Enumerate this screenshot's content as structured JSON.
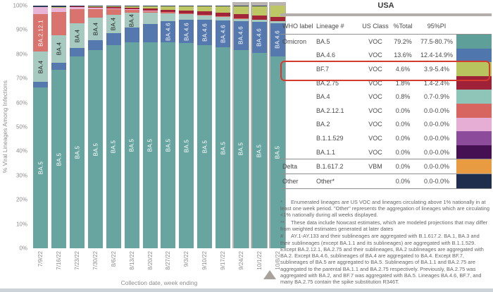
{
  "chart": {
    "y_axis_label": "% Viral Lineages Among Infections",
    "x_axis_label": "Collection date, week ending",
    "y_ticks": [
      "100%",
      "90%",
      "80%",
      "70%",
      "60%",
      "50%",
      "40%",
      "30%",
      "20%",
      "10%",
      "0%"
    ]
  },
  "chart_data": {
    "type": "bar",
    "stacked": true,
    "title": "",
    "xlabel": "Collection date, week ending",
    "ylabel": "% Viral Lineages Among Infections",
    "ylim": [
      0,
      100
    ],
    "grid": false,
    "legend_position": "table-right",
    "categories": [
      "7/9/22",
      "7/16/22",
      "7/23/22",
      "7/30/22",
      "8/6/22",
      "8/13/22",
      "8/20/22",
      "8/27/22",
      "9/3/22",
      "9/10/22",
      "9/17/22",
      "9/24/22",
      "10/1/22",
      "10/8/22"
    ],
    "nowcast_bars": [
      11,
      12,
      13
    ],
    "series": [
      {
        "name": "BA.5",
        "color": "#68a5a1",
        "label_color": "#ffffff",
        "label_bars": [
          0,
          1,
          2,
          3,
          4,
          5,
          6,
          7,
          8,
          9,
          10,
          11,
          12,
          13
        ],
        "values": [
          66.4,
          73.5,
          79.0,
          81.6,
          83.6,
          84.9,
          84.9,
          85.0,
          84.5,
          83.7,
          82.8,
          81.7,
          80.4,
          79.2
        ]
      },
      {
        "name": "BA.4.6",
        "color": "#5578ae",
        "label_color": "#ffffff",
        "label_bars": [
          7,
          8,
          9,
          10,
          11,
          12,
          13
        ],
        "values": [
          2.3,
          3.0,
          3.6,
          4.3,
          5.0,
          6.1,
          7.5,
          8.6,
          9.6,
          10.5,
          11.2,
          11.9,
          12.8,
          13.6
        ]
      },
      {
        "name": "BA.4",
        "color": "#a6cabf",
        "label_color": "#222222",
        "label_bars": [
          0,
          1,
          2,
          3,
          4,
          5
        ],
        "values": [
          12.3,
          11.3,
          10.0,
          9.2,
          7.7,
          6.0,
          4.6,
          3.2,
          2.4,
          1.9,
          1.5,
          1.2,
          1.0,
          0.8
        ]
      },
      {
        "name": "BA.2.12.1",
        "color": "#d8736e",
        "label_color": "#ffffff",
        "label_bars": [
          0
        ],
        "values": [
          15.5,
          9.7,
          6.0,
          3.6,
          2.3,
          1.4,
          0.9,
          0.6,
          0.3,
          0.2,
          0.1,
          0.1,
          0.0,
          0.0
        ]
      },
      {
        "name": "BA.2",
        "color": "#e8b5d8",
        "label_color": "#ffffff",
        "label_bars": [],
        "values": [
          3.0,
          1.7,
          0.8,
          0.4,
          0.2,
          0.1,
          0.1,
          0.0,
          0.0,
          0.0,
          0.0,
          0.0,
          0.0,
          0.0
        ]
      },
      {
        "name": "BA.2.75",
        "color": "#a32638",
        "label_color": "#ffffff",
        "label_bars": [],
        "values": [
          0.0,
          0.2,
          0.3,
          0.4,
          0.5,
          0.6,
          0.8,
          1.0,
          1.2,
          1.3,
          1.5,
          1.6,
          1.7,
          1.8
        ]
      },
      {
        "name": "BF.7",
        "color": "#bdc765",
        "label_color": "#222222",
        "label_bars": [],
        "values": [
          0.0,
          0.1,
          0.2,
          0.3,
          0.5,
          0.7,
          1.0,
          1.4,
          1.8,
          2.2,
          2.7,
          3.3,
          3.9,
          4.6
        ]
      },
      {
        "name": "Other",
        "color": "#2a3a58",
        "label_color": "#ffffff",
        "label_bars": [],
        "values": [
          0.5,
          0.5,
          0.1,
          0.2,
          0.2,
          0.2,
          0.2,
          0.2,
          0.2,
          0.2,
          0.2,
          0.2,
          0.2,
          0.0
        ]
      }
    ]
  },
  "table": {
    "title": "USA",
    "columns": [
      "WHO label",
      "Lineage #",
      "US Class",
      "%Total",
      "95%PI"
    ],
    "rows": [
      {
        "who": "Omicron",
        "lineage": "BA.5",
        "class": "VOC",
        "total": "79.2%",
        "pi": "77.5-80.7%",
        "color": "#5f9f9a"
      },
      {
        "who": "",
        "lineage": "BA.4.6",
        "class": "VOC",
        "total": "13.6%",
        "pi": "12.4-14.9%",
        "color": "#4f77ae"
      },
      {
        "who": "",
        "lineage": "BF.7",
        "class": "VOC",
        "total": "4.6%",
        "pi": "3.9-5.4%",
        "color": "#b8c45d",
        "highlighted": true
      },
      {
        "who": "",
        "lineage": "BA.2.75",
        "class": "VOC",
        "total": "1.8%",
        "pi": "1.4-2.4%",
        "color": "#9e2137"
      },
      {
        "who": "",
        "lineage": "BA.4",
        "class": "VOC",
        "total": "0.8%",
        "pi": "0.7-0.9%",
        "color": "#8fc4b9"
      },
      {
        "who": "",
        "lineage": "BA.2.12.1",
        "class": "VOC",
        "total": "0.0%",
        "pi": "0.0-0.0%",
        "color": "#d76560"
      },
      {
        "who": "",
        "lineage": "BA.2",
        "class": "VOC",
        "total": "0.0%",
        "pi": "0.0-0.0%",
        "color": "#e7aed5"
      },
      {
        "who": "",
        "lineage": "B.1.1.529",
        "class": "VOC",
        "total": "0.0%",
        "pi": "0.0-0.0%",
        "color": "#8d4b9c"
      },
      {
        "who": "",
        "lineage": "BA.1.1",
        "class": "VOC",
        "total": "0.0%",
        "pi": "0.0-0.0%",
        "color": "#451153"
      },
      {
        "who": "Delta",
        "lineage": "B.1.617.2",
        "class": "VBM",
        "total": "0.0%",
        "pi": "0.0-0.0%",
        "color": "#e89b41",
        "separator_above": true
      },
      {
        "who": "Other",
        "lineage": "Other*",
        "class": "",
        "total": "0.0%",
        "pi": "0.0-0.0%",
        "color": "#1f2e4d",
        "separator_above": true
      }
    ],
    "footnotes": [
      {
        "marker": "*",
        "text": "Enumerated lineages are US VOC and lineages circulating above 1% nationally in at least one week period. \"Other\" represents the aggregation of lineages which are circulating <1% nationally during all weeks displayed."
      },
      {
        "marker": "**",
        "text": "These data include Nowcast estimates, which are modeled projections that may differ from weighted estimates generated at later dates"
      },
      {
        "marker": "#",
        "text": "AY.1-AY.133 and their sublineages are aggregated with B.1.617.2. BA.1, BA.3 and their sublineages (except BA.1.1 and its sublineages) are aggregated with B.1.1.529. Except BA.2.12.1, BA.2.75 and their sublineages, BA.2 sublineages are aggregated with BA.2. Except BA.4.6, sublineages of BA.4 are aggregated to BA.4. Except BF.7, sublineages of BA.5 are aggregated to BA.5. Sublineages of BA.1.1 and BA.2.75 are aggregated to the parental BA.1.1 and BA.2.75 respectively. Previously, BA.2.75 was aggregated with BA.2, and BF.7 was aggregated with BA.5. Lineages BA.4.6, BF.7, and many BA.2.75 contain the spike substitution R346T."
      }
    ]
  },
  "annotations": {
    "highlight_color": "#d23b2e",
    "nowcast_region_color": "#b9b4b0",
    "nowcast_marker": "triangle"
  }
}
